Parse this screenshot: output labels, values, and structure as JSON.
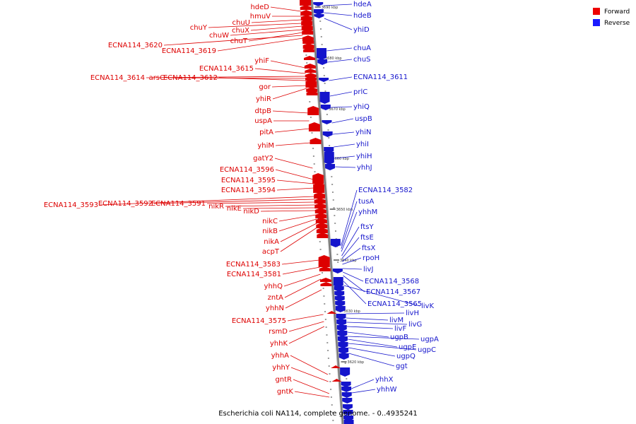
{
  "caption": "Escherichia coli NA114, complete genome. - 0..4935241",
  "legend": [
    {
      "label": "Forward",
      "color": "#ee0000"
    },
    {
      "label": "Reverse",
      "color": "#1a1aff"
    }
  ],
  "colors": {
    "forward": "#dd0000",
    "reverse": "#1515cc",
    "backbone": "#888888"
  },
  "ticks": [
    "3690 kbp",
    "3680 kbp",
    "3670 kbp",
    "3660 kbp",
    "3650 kbp",
    "3640 kbp",
    "3630 kbp",
    "3620 kbp"
  ],
  "forward_genes": [
    "hdeD",
    "hmuV",
    "chuU",
    "chuY",
    "chuX",
    "chuW",
    "chuT",
    "ECNA114_3620",
    "ECNA114_3619",
    "yhiF",
    "ECNA114_3615",
    "ECNA114_3614",
    "arsC",
    "ECNA114_3612",
    "gor",
    "yhiR",
    "dtpB",
    "uspA",
    "pitA",
    "yhiM",
    "gatY2",
    "ECNA114_3596",
    "ECNA114_3595",
    "ECNA114_3594",
    "ECNA114_3593",
    "ECNA114_3592",
    "ECNA114_3591",
    "nikR",
    "nikE",
    "nikD",
    "nikC",
    "nikB",
    "nikA",
    "acpT",
    "ECNA114_3583",
    "ECNA114_3581",
    "yhhQ",
    "zntA",
    "yhhN",
    "ECNA114_3575",
    "rsmD",
    "yhhK",
    "yhhA",
    "yhhY",
    "gntR",
    "gntK"
  ],
  "reverse_genes": [
    "hdeA",
    "hdeB",
    "yhiD",
    "chuA",
    "chuS",
    "ECNA114_3611",
    "prlC",
    "yhiQ",
    "uspB",
    "yhiN",
    "yhiI",
    "yhiH",
    "yhhJ",
    "ECNA114_3582",
    "tusA",
    "yhhM",
    "ftsY",
    "ftsE",
    "ftsX",
    "rpoH",
    "livJ",
    "ECNA114_3568",
    "ECNA114_3567",
    "ECNA114_3565",
    "livK",
    "livH",
    "livM",
    "livG",
    "livF",
    "ugpB",
    "ugpA",
    "ugpE",
    "ugpC",
    "ugpQ",
    "ggt",
    "yhhX",
    "yhhW"
  ]
}
